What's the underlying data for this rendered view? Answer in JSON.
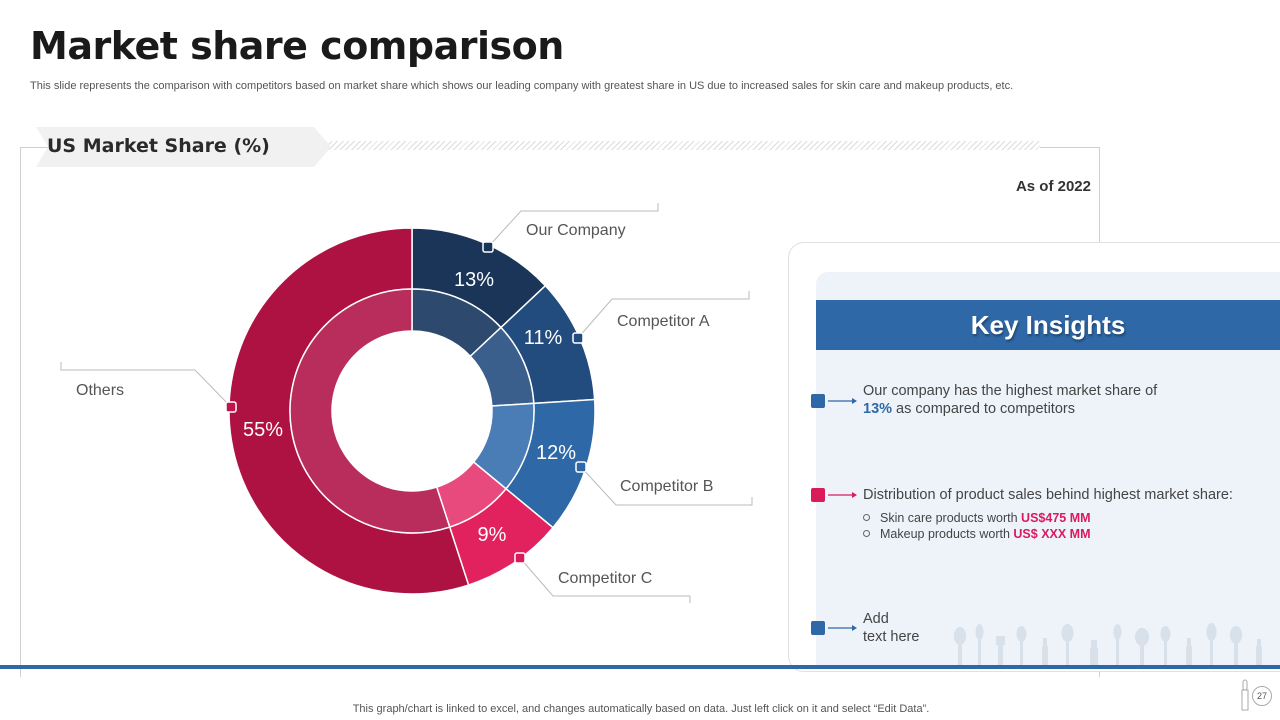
{
  "header": {
    "title": "Market share comparison",
    "subtitle": "This slide represents the comparison with competitors based on market share which shows our leading company with greatest share in US due to increased sales for skin care and makeup products, etc."
  },
  "chart_section": {
    "tag": "US Market Share (%)",
    "as_of": "As of 2022"
  },
  "chart_data": {
    "type": "pie",
    "title": "US Market Share (%)",
    "subtitle": "As of 2022",
    "categories": [
      "Our Company",
      "Competitor A",
      "Competitor B",
      "Competitor C",
      "Others"
    ],
    "values": [
      13,
      11,
      12,
      9,
      55
    ],
    "labels": [
      "13%",
      "11%",
      "12%",
      "9%",
      "55%"
    ],
    "colors": [
      "#1b3558",
      "#224b7e",
      "#2f68a6",
      "#e2215f",
      "#ad1242"
    ],
    "inner_colors": [
      "#2d4a6e",
      "#3a5f8d",
      "#4a7db5",
      "#e84a7d",
      "#b82d5b"
    ],
    "marker_colors": [
      "#1b3558",
      "#224b7e",
      "#2f68a6",
      "#d91b5c",
      "#c0144e"
    ]
  },
  "insights": {
    "title": "Key Insights",
    "item1": {
      "text_a": "Our company has the highest market share of",
      "highlight": "13%",
      "text_b": " as compared to competitors"
    },
    "item2": {
      "text": "Distribution of product sales behind highest market share:",
      "sub1_label": "Skin care products worth ",
      "sub1_value": "US$475 MM",
      "sub2_label": "Makeup products worth ",
      "sub2_value": "US$ XXX MM"
    },
    "item3": {
      "line1": "Add",
      "line2": "text here"
    }
  },
  "colors": {
    "accent_blue": "#2f68a6",
    "accent_pink": "#d91b5c"
  },
  "footer": {
    "note": "This graph/chart is linked to excel,  and changes automatically based on data. Just left click on it and select “Edit Data”.",
    "page_number": "27"
  }
}
